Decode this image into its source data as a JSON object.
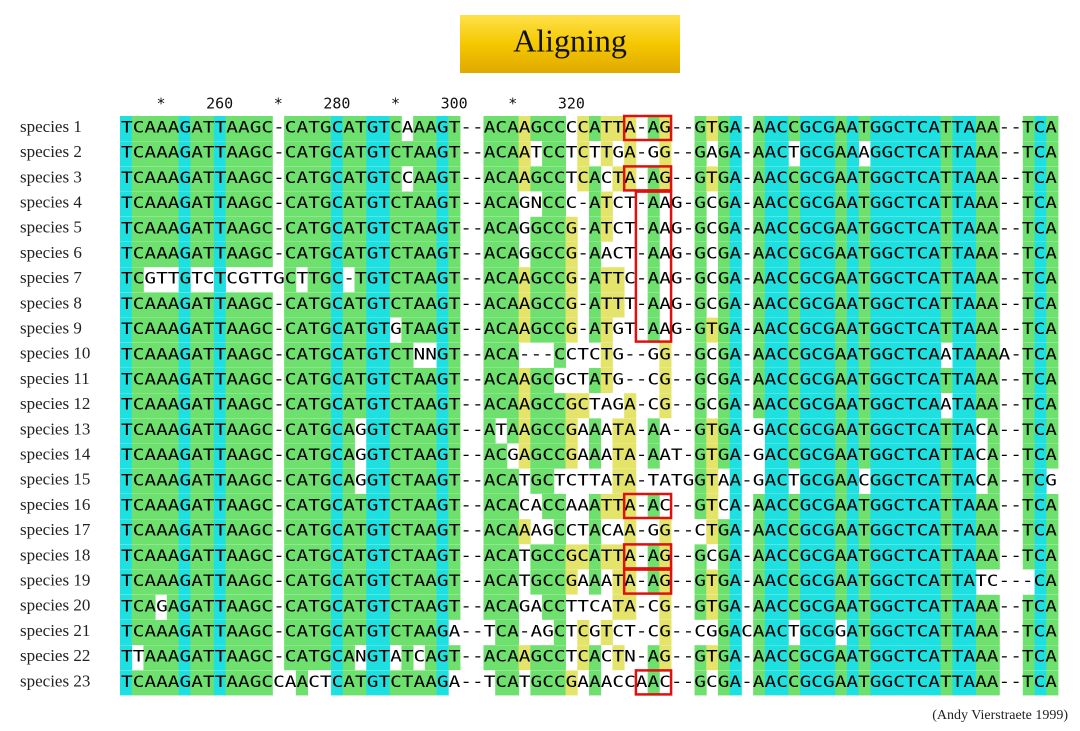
{
  "header": {
    "title": "Aligning"
  },
  "ruler": [
    "*",
    "260",
    "*",
    "280",
    "*",
    "300",
    "*",
    "320"
  ],
  "alignment": [
    {
      "name": "species 1",
      "sequence": "TCAAAGATTAAGC-CATGCATGTCAAAGT--ACAAGCCCCATTA-AG--GTGA-AACCGCGAATGGCTCATTAAA--TCA"
    },
    {
      "name": "species 2",
      "sequence": "TCAAAGATTAAGC-CATGCATGTCTAAGT--ACAATCCTCTTGA-GG--GAGA-AACTGCGAAAGGCTCATTAAA--TCA"
    },
    {
      "name": "species 3",
      "sequence": "TCAAAGATTAAGC-CATGCATGTCCAAGT--ACAAGCCTCACTA-AG--GTGA-AACCGCGAATGGCTCATTAAA--TCA"
    },
    {
      "name": "species 4",
      "sequence": "TCAAAGATTAAGC-CATGCATGTCTAAGT--ACAGNCCC-ATCT-AAG-GCGA-AACCGCGAATGGCTCATTAAA--TCA"
    },
    {
      "name": "species 5",
      "sequence": "TCAAAGATTAAGC-CATGCATGTCTAAGT--ACAGGCCG-ATCT-AAG-GCGA-AACCGCGAATGGCTCATTAAA--TCA"
    },
    {
      "name": "species 6",
      "sequence": "TCAAAGATTAAGC-CATGCATGTCTAAGT--ACAGGCCG-AACT-AAG-GCGA-AACCGCGAATGGCTCATTAAA--TCA"
    },
    {
      "name": "species 7",
      "sequence": "TCGTTGTCTCGTTGCTTGC-TGTCTAAGT--ACAAGCCG-ATTC-AAG-GCGA-AACCGCGAATGGCTCATTAAA--TCA"
    },
    {
      "name": "species 8",
      "sequence": "TCAAAGATTAAGC-CATGCATGTCTAAGT--ACAAGCCG-ATTT-AAG-GCGA-AACCGCGAATGGCTCATTAAA--TCA"
    },
    {
      "name": "species 9",
      "sequence": "TCAAAGATTAAGC-CATGCATGTGTAAGT--ACAAGCCG-ATGT-AAG-GTGA-AACCGCGAATGGCTCATTAAA--TCA"
    },
    {
      "name": "species 10",
      "sequence": "TCAAAGATTAAGC-CATGCATGTCTNNGT--ACA---CCTCTG--GG--GCGA-AACCGCGAATGGCTCAATAAAA-TCA"
    },
    {
      "name": "species 11",
      "sequence": "TCAAAGATTAAGC-CATGCATGTCTAAGT--ACAAGCGCTATG--CG--GCGA-AACCGCGAATGGCTCATTAAA--TCA"
    },
    {
      "name": "species 12",
      "sequence": "TCAAAGATTAAGC-CATGCATGTCTAAGT--ACAAGCCGCTAGA-CG--GCGA-AACCGCGAATGGCTCAATAAA--TCA"
    },
    {
      "name": "species 13",
      "sequence": "TCAAAGATTAAGC-CATGCAGGTCTAAGT--ATAAGCCGAAATA-AA--GTGA-GACCGCGAATGGCTCATTACA--TCA"
    },
    {
      "name": "species 14",
      "sequence": "TCAAAGATTAAGC-CATGCAGGTCTAAGT--ACGAGCCGAAATA-AAT-GTGA-GACCGCGAATGGCTCATTACA--TCA"
    },
    {
      "name": "species 15",
      "sequence": "TCAAAGATTAAGC-CATGCAGGTCTAAGT--ACATGCTCTTATA-TATGGTAA-GACTGCGAACGGCTCATTACA--TCG"
    },
    {
      "name": "species 16",
      "sequence": "TCAAAGATTAAGC-CATGCATGTCTAAGT--ACACACCAAATTA-AC--GTCA-AACCGCGAATGGCTCATTAAA--TCA"
    },
    {
      "name": "species 17",
      "sequence": "TCAAAGATTAAGC-CATGCATGTCTAAGT--ACAAAGCCTACAA-GG--CTGA-AACCGCGAATGGCTCATTAAA--TCA"
    },
    {
      "name": "species 18",
      "sequence": "TCAAAGATTAAGC-CATGCATGTCTAAGT--ACATGCCGCATTA-AG--GCGA-AACCGCGAATGGCTCATTAAA--TCA"
    },
    {
      "name": "species 19",
      "sequence": "TCAAAGATTAAGC-CATGCATGTCTAAGT--ACATGCCGAAATA-AG--GTGA-AACCGCGAATGGCTCATTATC---CA"
    },
    {
      "name": "species 20",
      "sequence": "TCAGAGATTAAGC-CATGCATGTCTAAGT--ACAGACCTTCATA-CG--GTGA-AACCGCGAATGGCTCATTAAA--TCA"
    },
    {
      "name": "species 21",
      "sequence": "TCAAAGATTAAGC-CATGCATGTCTAAGA--TCA-AGCTCGTCT-CG--CGGACAACTGCGGATGGCTCATTAAA--TCA"
    },
    {
      "name": "species 22",
      "sequence": "TTAAAGATTAAGC-CATGCANGTATCAGT--ACAAGCCTCACTN-AG--GTGA-AACCGCGAATGGCTCATTAAA--TCA"
    },
    {
      "name": "species 23",
      "sequence": "TCAAAGATTAAGCCAACTCATGTCTAAGA--TCATGCCGAAACCAAC--GCGA-AACCGCGAATGGCTCATTAAA--TCA"
    }
  ],
  "footer": {
    "credit": "(Andy Vierstraete 1999)"
  }
}
